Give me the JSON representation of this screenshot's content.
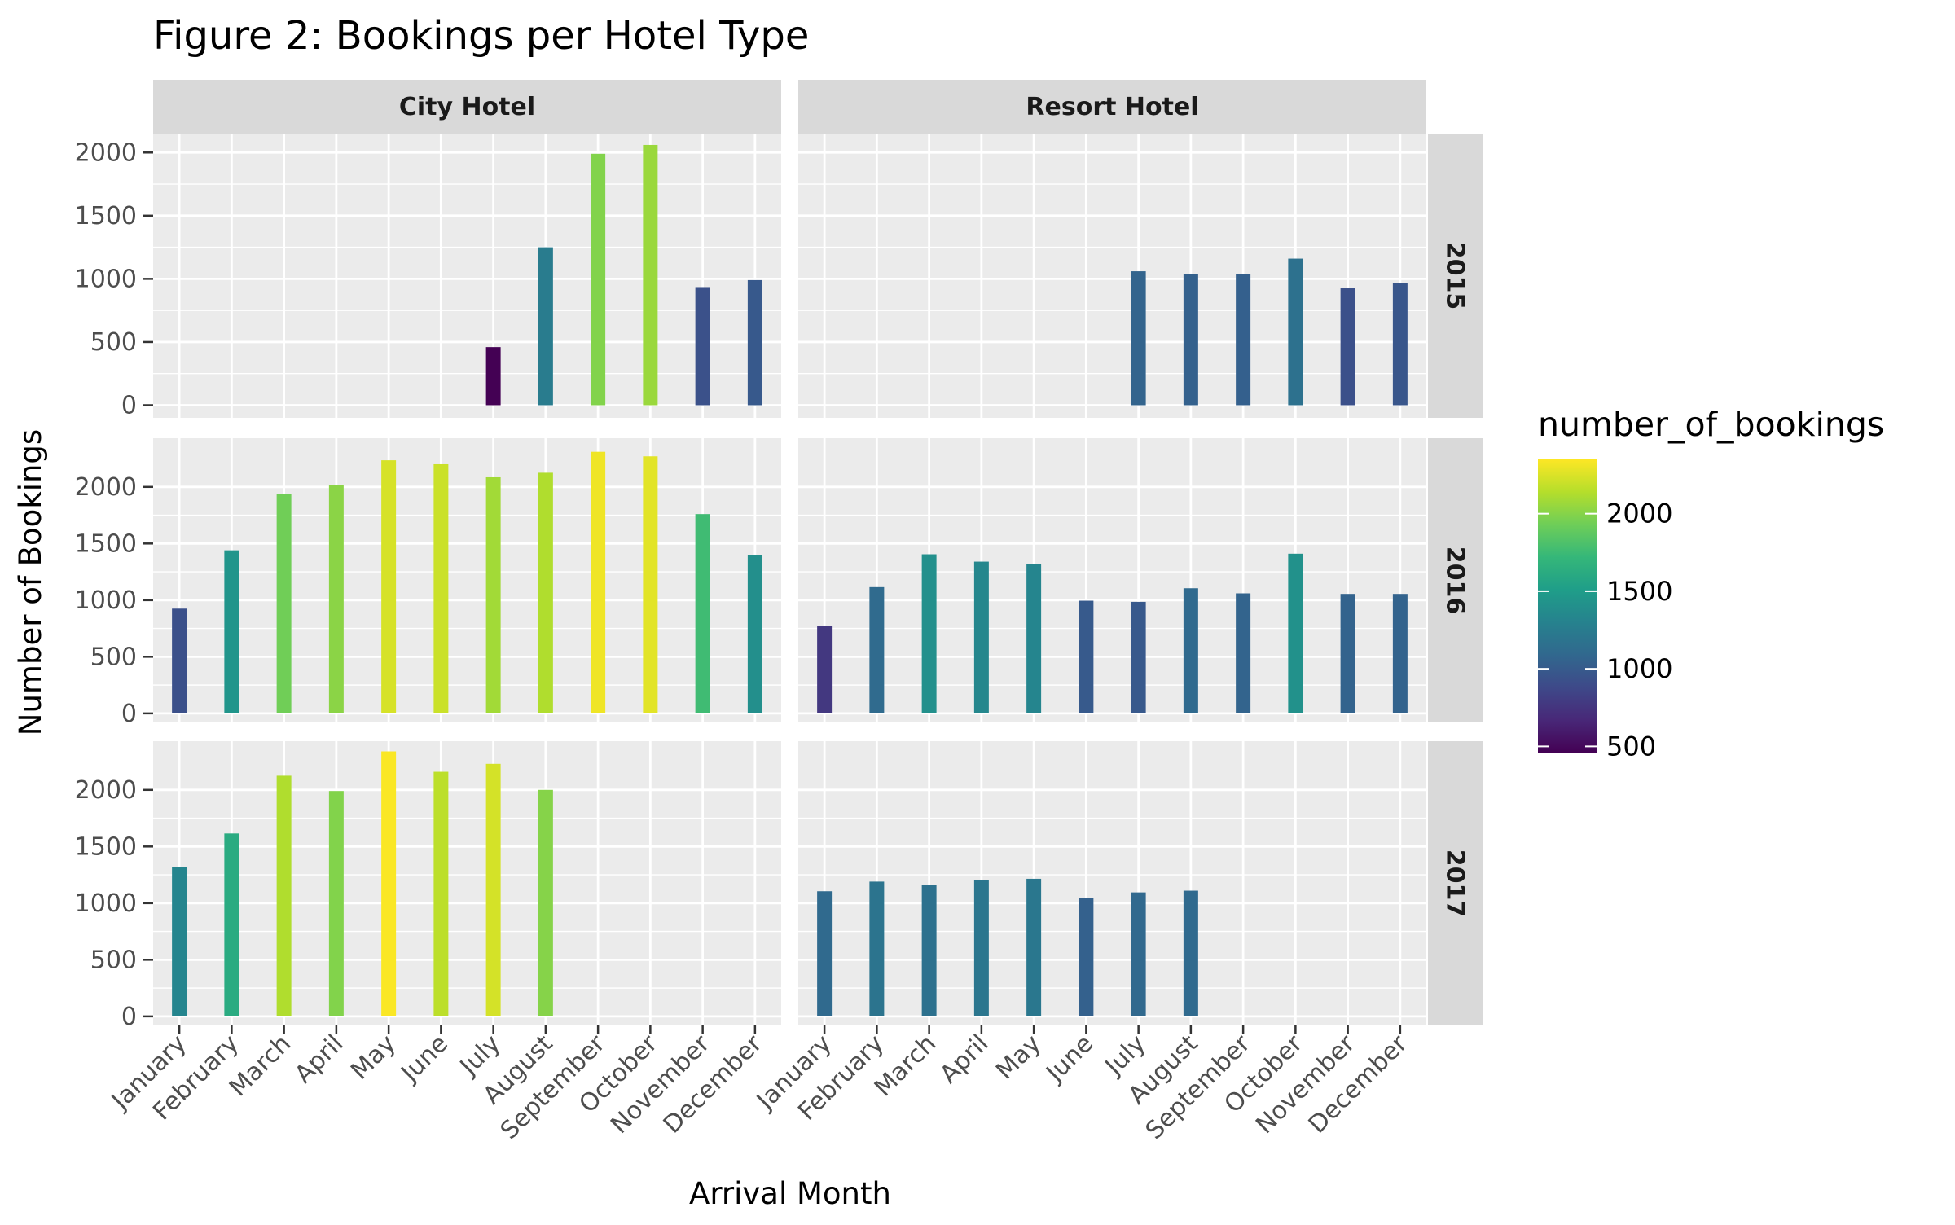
{
  "chart_data": {
    "type": "bar",
    "title": "Figure 2: Bookings per Hotel Type",
    "xlabel": "Arrival Month",
    "ylabel": "Number of Bookings",
    "categories": [
      "January",
      "February",
      "March",
      "April",
      "May",
      "June",
      "July",
      "August",
      "September",
      "October",
      "November",
      "December"
    ],
    "columns": [
      "City Hotel",
      "Resort Hotel"
    ],
    "rows": [
      "2015",
      "2016",
      "2017"
    ],
    "panel_ylims": {
      "2015": [
        -100,
        2150
      ],
      "2016": [
        -80,
        2430
      ],
      "2017": [
        -80,
        2430
      ]
    },
    "yticks": [
      0,
      500,
      1000,
      1500,
      2000
    ],
    "legend": {
      "title": "number_of_bookings",
      "placement": "right",
      "min": 460,
      "max": 2350,
      "ticks": [
        500,
        1000,
        1500,
        2000
      ],
      "tick_labels": [
        "500",
        "1000",
        "1500",
        "2000"
      ]
    },
    "palette": [
      "#440154",
      "#482878",
      "#3e4989",
      "#31688e",
      "#26828e",
      "#1f9e89",
      "#35b779",
      "#6ece58",
      "#b5de2b",
      "#fde725"
    ],
    "panels": [
      {
        "column": "City Hotel",
        "row": "2015",
        "values": [
          null,
          null,
          null,
          null,
          null,
          null,
          460,
          1250,
          1990,
          2060,
          935,
          990
        ]
      },
      {
        "column": "Resort Hotel",
        "row": "2015",
        "values": [
          null,
          null,
          null,
          null,
          null,
          null,
          1060,
          1040,
          1035,
          1160,
          925,
          965
        ]
      },
      {
        "column": "City Hotel",
        "row": "2016",
        "values": [
          925,
          1440,
          1935,
          2015,
          2235,
          2200,
          2085,
          2125,
          2310,
          2270,
          1760,
          1400
        ]
      },
      {
        "column": "Resort Hotel",
        "row": "2016",
        "values": [
          770,
          1115,
          1405,
          1340,
          1320,
          995,
          985,
          1105,
          1060,
          1410,
          1055,
          1055
        ]
      },
      {
        "column": "City Hotel",
        "row": "2017",
        "values": [
          1320,
          1615,
          2125,
          1990,
          2340,
          2160,
          2230,
          2000,
          null,
          null,
          null,
          null
        ]
      },
      {
        "column": "Resort Hotel",
        "row": "2017",
        "values": [
          1105,
          1190,
          1160,
          1205,
          1215,
          1045,
          1095,
          1110,
          null,
          null,
          null,
          null
        ]
      }
    ]
  }
}
